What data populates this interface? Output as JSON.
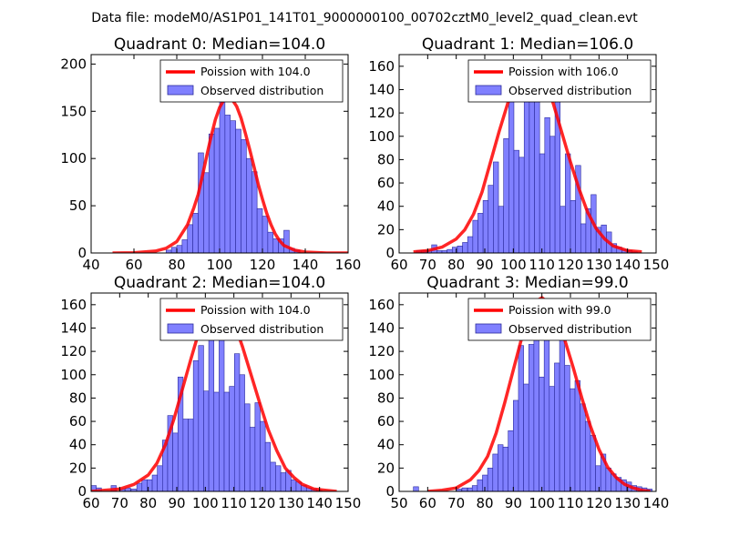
{
  "figure": {
    "suptitle": "Data file: modeM0/AS1P01_141T01_9000000100_00702cztM0_level2_quad_clean.evt"
  },
  "colors": {
    "poisson_line": "#ff0000",
    "bar_fill": "#8080ff",
    "bar_edge": "#2a2a9c"
  },
  "chart_data": [
    {
      "type": "bar",
      "title": "Quadrant 0: Median=104.0",
      "xlim": [
        40,
        160
      ],
      "ylim": [
        0,
        210
      ],
      "xticks": [
        40,
        60,
        80,
        100,
        120,
        140,
        160
      ],
      "yticks": [
        0,
        50,
        100,
        150,
        200
      ],
      "legend_position": "upper-right",
      "legend": [
        "Poission with 104.0",
        "Observed distribution"
      ],
      "bin_width": 2.5,
      "observed": {
        "bin_starts": [
          75,
          77.5,
          80,
          82.5,
          85,
          87.5,
          90,
          92.5,
          95,
          97.5,
          100,
          102.5,
          105,
          107.5,
          110,
          112.5,
          115,
          117.5,
          120,
          122.5,
          125,
          127.5,
          130,
          132.5,
          135
        ],
        "counts": [
          3,
          6,
          8,
          14,
          30,
          42,
          106,
          85,
          126,
          132,
          163,
          146,
          140,
          131,
          120,
          100,
          86,
          47,
          39,
          22,
          15,
          15,
          24,
          5,
          3
        ]
      },
      "poisson": {
        "x": [
          50,
          60,
          70,
          75,
          80,
          85,
          88,
          90,
          92,
          94,
          96,
          98,
          100,
          102,
          104,
          106,
          108,
          110,
          112,
          114,
          116,
          118,
          120,
          122,
          124,
          126,
          128,
          130,
          135,
          140,
          150,
          160
        ],
        "y": [
          0,
          0.3,
          2,
          5,
          12,
          30,
          48,
          62,
          82,
          103,
          123,
          141,
          154,
          162,
          164,
          162,
          155,
          143,
          127,
          110,
          92,
          73,
          57,
          42,
          30,
          20,
          13,
          8,
          3,
          1,
          0,
          0
        ]
      }
    },
    {
      "type": "bar",
      "title": "Quadrant 1: Median=106.0",
      "xlim": [
        60,
        150
      ],
      "ylim": [
        0,
        170
      ],
      "xticks": [
        60,
        70,
        80,
        90,
        100,
        110,
        120,
        130,
        140,
        150
      ],
      "yticks": [
        0,
        20,
        40,
        60,
        80,
        100,
        120,
        140,
        160
      ],
      "legend_position": "upper-right",
      "legend": [
        "Poission with 106.0",
        "Observed distribution"
      ],
      "bin_width": 1.8,
      "observed": {
        "bin_starts": [
          66,
          67.8,
          69.6,
          71.4,
          73.2,
          75,
          76.8,
          78.6,
          80.4,
          82.2,
          84,
          85.8,
          87.6,
          89.4,
          91.2,
          93,
          94.8,
          96.6,
          98.4,
          100.2,
          102,
          103.8,
          105.6,
          107.4,
          109.2,
          111,
          112.8,
          114.6,
          116.4,
          118.2,
          120,
          121.8,
          123.6,
          125.4,
          127.2,
          129,
          130.8,
          132.6,
          134.4,
          136.2,
          138,
          139.8,
          141.6
        ],
        "counts": [
          2,
          2,
          2,
          7,
          2,
          2,
          3,
          5,
          6,
          9,
          14,
          28,
          34,
          45,
          58,
          78,
          40,
          98,
          135,
          88,
          82,
          140,
          162,
          140,
          85,
          116,
          100,
          132,
          40,
          85,
          45,
          75,
          25,
          38,
          50,
          22,
          24,
          18,
          8,
          5,
          3,
          2,
          1
        ]
      },
      "poisson": {
        "x": [
          65,
          70,
          75,
          80,
          83,
          86,
          89,
          92,
          95,
          98,
          101,
          104,
          106,
          108,
          111,
          114,
          117,
          120,
          123,
          126,
          129,
          132,
          135,
          140,
          145
        ],
        "y": [
          1,
          2,
          5,
          12,
          20,
          33,
          52,
          78,
          104,
          128,
          148,
          160,
          162,
          160,
          149,
          128,
          103,
          78,
          55,
          35,
          21,
          12,
          6,
          2,
          1
        ]
      }
    },
    {
      "type": "bar",
      "title": "Quadrant 2: Median=104.0",
      "xlim": [
        60,
        150
      ],
      "ylim": [
        0,
        170
      ],
      "xticks": [
        60,
        70,
        80,
        90,
        100,
        110,
        120,
        130,
        140,
        150
      ],
      "yticks": [
        0,
        20,
        40,
        60,
        80,
        100,
        120,
        140,
        160
      ],
      "legend_position": "upper-right",
      "legend": [
        "Poission with 104.0",
        "Observed distribution"
      ],
      "bin_width": 1.8,
      "observed": {
        "bin_starts": [
          60,
          61.8,
          67,
          70,
          72,
          74,
          76,
          77.8,
          79.6,
          81.4,
          83.2,
          85,
          86.8,
          88.6,
          90.4,
          92.2,
          94,
          95.8,
          97.6,
          99.4,
          101.2,
          103,
          104.8,
          106.6,
          108.4,
          110.2,
          112,
          113.8,
          115.6,
          117.4,
          119.2,
          121,
          122.8,
          124.6,
          126.4,
          128.2,
          130,
          131.8,
          133.6,
          135.4,
          137.2,
          139
        ],
        "counts": [
          5,
          3,
          5,
          2,
          3,
          2,
          7,
          10,
          10,
          14,
          22,
          44,
          65,
          50,
          98,
          62,
          62,
          112,
          125,
          86,
          152,
          85,
          136,
          85,
          90,
          118,
          100,
          75,
          55,
          76,
          60,
          42,
          25,
          22,
          16,
          18,
          10,
          8,
          5,
          3,
          2,
          1
        ]
      },
      "poisson": {
        "x": [
          60,
          70,
          75,
          80,
          83,
          86,
          89,
          92,
          95,
          98,
          101,
          103,
          105,
          107,
          110,
          113,
          116,
          119,
          122,
          125,
          128,
          131,
          134,
          138,
          142,
          146
        ],
        "y": [
          0,
          2,
          6,
          14,
          24,
          40,
          62,
          88,
          114,
          139,
          157,
          163,
          162,
          158,
          145,
          124,
          100,
          76,
          53,
          35,
          20,
          12,
          6,
          2,
          1,
          0
        ]
      }
    },
    {
      "type": "bar",
      "title": "Quadrant 3: Median=99.0",
      "xlim": [
        50,
        140
      ],
      "ylim": [
        0,
        170
      ],
      "xticks": [
        50,
        60,
        70,
        80,
        90,
        100,
        110,
        120,
        130,
        140
      ],
      "yticks": [
        0,
        20,
        40,
        60,
        80,
        100,
        120,
        140,
        160
      ],
      "legend_position": "upper-right",
      "legend": [
        "Poission with 99.0",
        "Observed distribution"
      ],
      "bin_width": 1.8,
      "observed": {
        "bin_starts": [
          55,
          70,
          72,
          74,
          75.6,
          77.4,
          79.2,
          81,
          82.8,
          84.6,
          86.4,
          88.2,
          90,
          91.8,
          93.6,
          95.4,
          97.2,
          99,
          100.8,
          102.6,
          104.4,
          106.2,
          108,
          109.8,
          111.6,
          113.4,
          115.2,
          117,
          118.8,
          120.6,
          122.4,
          124.2,
          126,
          127.8,
          129.6,
          131.4,
          133.2,
          135,
          136.8
        ],
        "counts": [
          4,
          2,
          3,
          3,
          5,
          10,
          14,
          20,
          32,
          40,
          38,
          52,
          78,
          125,
          92,
          126,
          135,
          98,
          150,
          90,
          110,
          130,
          108,
          88,
          95,
          75,
          60,
          48,
          22,
          32,
          20,
          15,
          12,
          10,
          8,
          5,
          4,
          3,
          2
        ]
      },
      "poisson": {
        "x": [
          60,
          65,
          70,
          75,
          78,
          81,
          84,
          87,
          90,
          93,
          96,
          98,
          100,
          102,
          105,
          108,
          111,
          114,
          117,
          120,
          123,
          126,
          129,
          132,
          135,
          138
        ],
        "y": [
          0,
          1,
          3,
          10,
          18,
          30,
          50,
          76,
          104,
          132,
          153,
          163,
          166,
          162,
          150,
          130,
          106,
          80,
          56,
          36,
          21,
          12,
          6,
          3,
          1,
          0
        ]
      }
    }
  ]
}
